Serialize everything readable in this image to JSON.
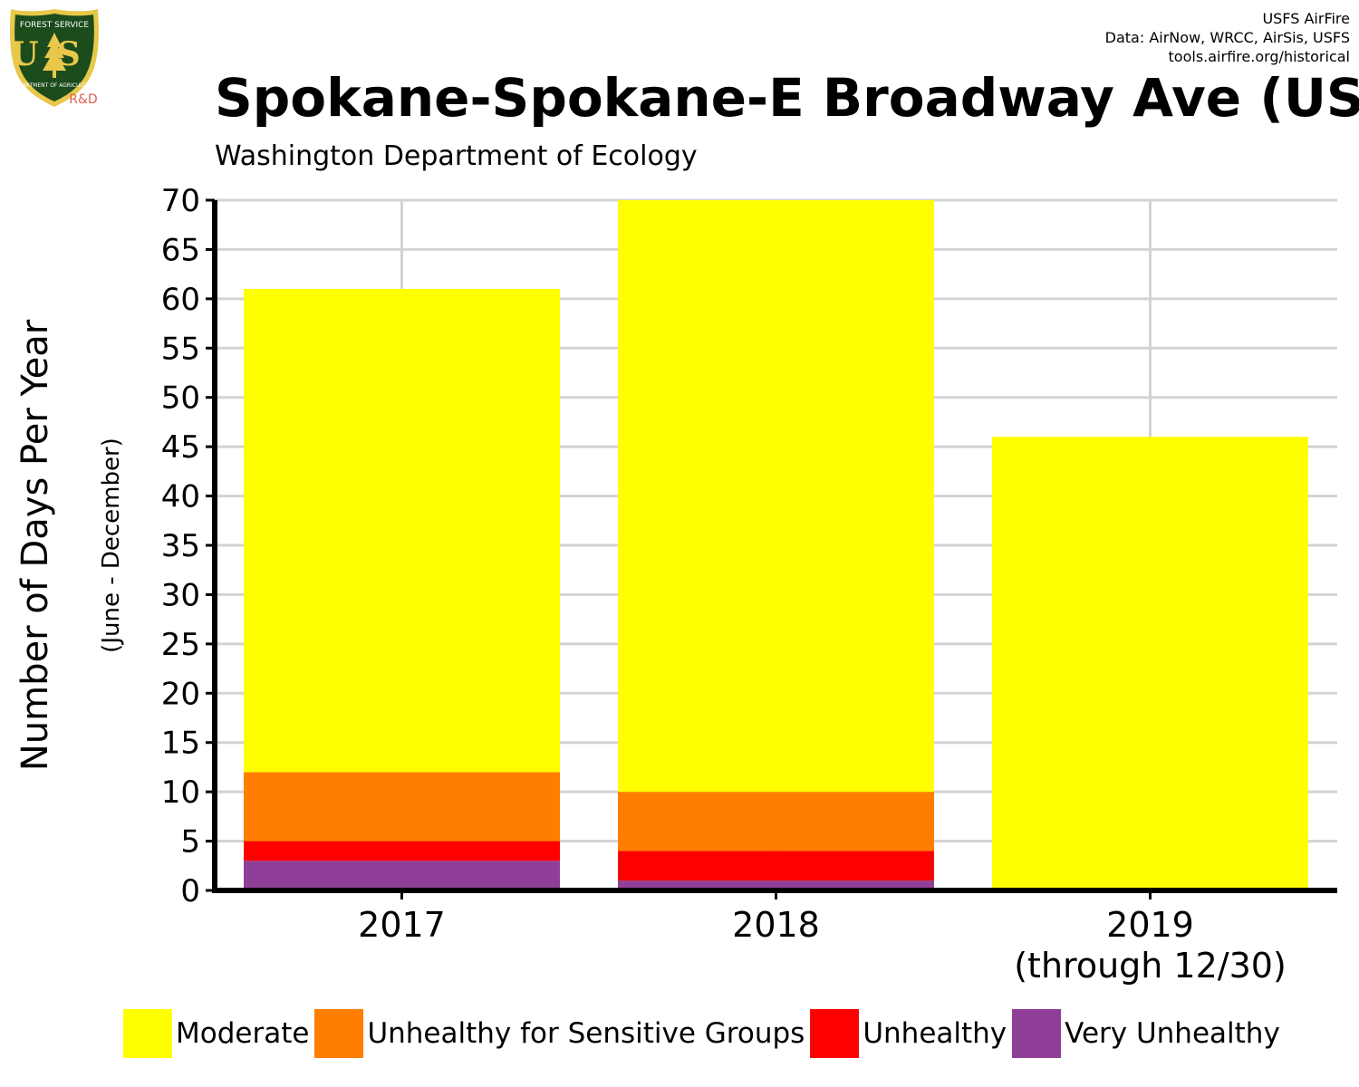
{
  "logo": {
    "top_text": "FOREST SERVICE",
    "letters": "US",
    "bottom_text": "DEPARTMENT OF AGRICULTURE",
    "badge": "R&D",
    "colors": {
      "shield": "#1c4b1c",
      "trim": "#e8c84a",
      "badge": "#e06050"
    }
  },
  "credits": [
    "USFS AirFire",
    "Data: AirNow, WRCC, AirSis, USFS",
    "tools.airfire.org/historical"
  ],
  "title": "Spokane-Spokane-E Broadway Ave (US",
  "subtitle": "Washington Department of Ecology",
  "chart_data": {
    "type": "bar",
    "stacked": true,
    "title": "Spokane-Spokane-E Broadway Ave (US",
    "subtitle": "Washington Department of Ecology",
    "ylabel": "Number of Days Per Year",
    "ylabel_sub": "(June - December)",
    "xlabel": "",
    "ylim": [
      0,
      70
    ],
    "yticks": [
      0,
      5,
      10,
      15,
      20,
      25,
      30,
      35,
      40,
      45,
      50,
      55,
      60,
      65,
      70
    ],
    "grid": true,
    "legend_position": "bottom",
    "categories": [
      "2017",
      "2018",
      "2019"
    ],
    "category_sublabels": [
      "",
      "",
      "(through 12/30)"
    ],
    "series": [
      {
        "name": "Very Unhealthy",
        "color": "#8f3f97",
        "values": [
          3,
          1,
          0
        ]
      },
      {
        "name": "Unhealthy",
        "color": "#ff0000",
        "values": [
          2,
          3,
          0
        ]
      },
      {
        "name": "Unhealthy for Sensitive Groups",
        "color": "#ff7e00",
        "values": [
          7,
          6,
          0
        ]
      },
      {
        "name": "Moderate",
        "color": "#ffff00",
        "values": [
          49,
          60,
          46
        ]
      }
    ]
  },
  "legend": [
    {
      "label": "Moderate",
      "color": "#ffff00"
    },
    {
      "label": "Unhealthy for Sensitive Groups",
      "color": "#ff7e00"
    },
    {
      "label": "Unhealthy",
      "color": "#ff0000"
    },
    {
      "label": "Very Unhealthy",
      "color": "#8f3f97"
    }
  ]
}
